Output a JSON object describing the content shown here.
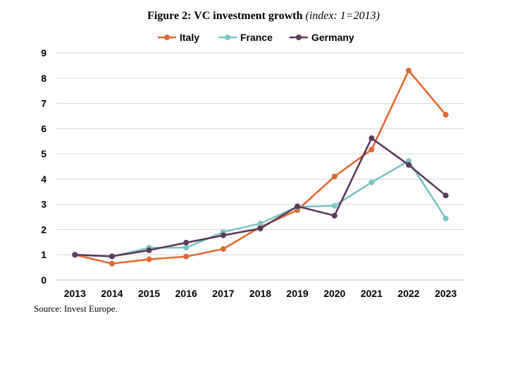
{
  "title": {
    "main": "Figure 2: VC investment growth ",
    "italic": "(index: 1=2013)"
  },
  "source": "Source: Invest Europe.",
  "chart_data": {
    "type": "line",
    "x": [
      "2013",
      "2014",
      "2015",
      "2016",
      "2017",
      "2018",
      "2019",
      "2020",
      "2021",
      "2022",
      "2023"
    ],
    "ylim": [
      0,
      9
    ],
    "yticks": [
      0,
      1,
      2,
      3,
      4,
      5,
      6,
      7,
      8,
      9
    ],
    "grid": true,
    "legend": "top",
    "series": [
      {
        "name": "Italy",
        "color": "#E06A32",
        "values": [
          1.0,
          0.65,
          0.82,
          0.93,
          1.23,
          2.1,
          2.77,
          4.1,
          5.17,
          8.3,
          6.55
        ]
      },
      {
        "name": "France",
        "color": "#7CC4C4",
        "values": [
          1.0,
          0.93,
          1.28,
          1.28,
          1.9,
          2.24,
          2.9,
          2.94,
          3.87,
          4.72,
          2.44
        ]
      },
      {
        "name": "Germany",
        "color": "#5B3A5C",
        "values": [
          1.0,
          0.94,
          1.18,
          1.48,
          1.77,
          2.04,
          2.92,
          2.55,
          5.62,
          4.56,
          3.35
        ]
      }
    ]
  }
}
